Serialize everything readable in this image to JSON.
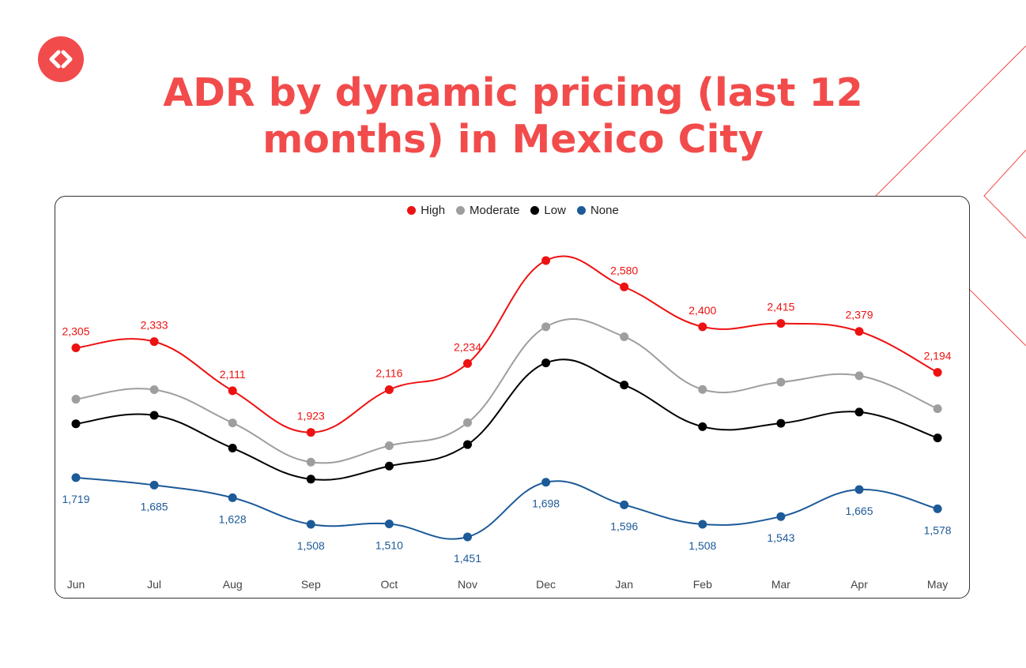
{
  "title": "ADR by dynamic pricing (last 12 months) in Mexico City",
  "colors": {
    "brand": "#f24b4b",
    "high": "#ee1111",
    "moderate": "#9e9e9e",
    "low": "#000000",
    "none": "#1c5a98"
  },
  "icons": {
    "logo": "code-brackets-icon"
  },
  "chart_data": {
    "type": "line",
    "title": "ADR by dynamic pricing (last 12 months) in Mexico City",
    "xlabel": "",
    "ylabel": "",
    "ylim": [
      1400,
      2800
    ],
    "grid": false,
    "legend_position": "top-center",
    "categories": [
      "Jun",
      "Jul",
      "Aug",
      "Sep",
      "Oct",
      "Nov",
      "Dec",
      "Jan",
      "Feb",
      "Mar",
      "Apr",
      "May"
    ],
    "series": [
      {
        "name": "High",
        "color": "#ee1111",
        "labels_shown": true,
        "label_position": "above",
        "values": [
          2305,
          2333,
          2111,
          1923,
          2116,
          2234,
          2699,
          2580,
          2400,
          2415,
          2379,
          2194
        ],
        "data_labels": [
          "2,305",
          "2,333",
          "2,111",
          "1,923",
          "2,116",
          "2,234",
          "",
          "2,580",
          "2,400",
          "2,415",
          "2,379",
          "2,194"
        ]
      },
      {
        "name": "Moderate",
        "color": "#9e9e9e",
        "labels_shown": false,
        "values": [
          2073,
          2116,
          1966,
          1789,
          1863,
          1967,
          2400,
          2355,
          2117,
          2150,
          2179,
          2030
        ],
        "data_labels": []
      },
      {
        "name": "Low",
        "color": "#000000",
        "labels_shown": false,
        "values": [
          1962,
          2000,
          1852,
          1712,
          1771,
          1868,
          2237,
          2137,
          1949,
          1964,
          2015,
          1898
        ],
        "data_labels": []
      },
      {
        "name": "None",
        "color": "#1c5a98",
        "labels_shown": true,
        "label_position": "below",
        "values": [
          1719,
          1685,
          1628,
          1508,
          1510,
          1451,
          1698,
          1596,
          1508,
          1543,
          1665,
          1578
        ],
        "data_labels": [
          "1,719",
          "1,685",
          "1,628",
          "1,508",
          "1,510",
          "1,451",
          "1,698",
          "1,596",
          "1,508",
          "1,543",
          "1,665",
          "1,578"
        ]
      }
    ]
  }
}
